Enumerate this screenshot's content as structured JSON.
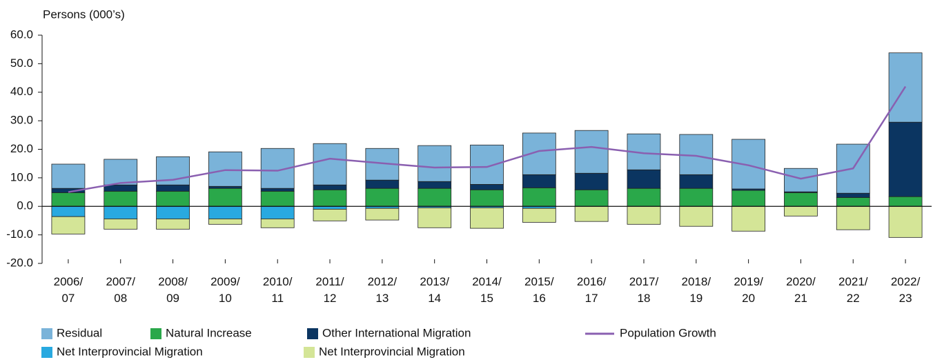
{
  "chart_data": {
    "type": "bar",
    "y_label": "Persons (000’s)",
    "categories": [
      "2006/07",
      "2007/08",
      "2008/09",
      "2009/10",
      "2010/11",
      "2011/12",
      "2012/13",
      "2013/14",
      "2014/15",
      "2015/16",
      "2016/17",
      "2017/18",
      "2018/19",
      "2019/20",
      "2020/21",
      "2021/22",
      "2022/23"
    ],
    "series": [
      {
        "name": "Residual",
        "color": "#7ab3d9",
        "values": [
          8.5,
          9.0,
          9.9,
          12.1,
          14.0,
          14.5,
          11.1,
          12.6,
          13.8,
          14.6,
          15.0,
          12.6,
          14.1,
          17.4,
          8.2,
          17.2,
          24.3
        ]
      },
      {
        "name": "Natural Increase",
        "color": "#2aa84a",
        "values": [
          4.8,
          5.3,
          5.3,
          6.3,
          5.3,
          5.8,
          6.3,
          6.3,
          5.8,
          6.5,
          5.8,
          6.3,
          6.3,
          5.6,
          4.8,
          3.1,
          3.4
        ]
      },
      {
        "name": "Other International Migration",
        "color": "#0b3561",
        "values": [
          1.5,
          2.2,
          2.2,
          0.7,
          1.0,
          1.7,
          2.9,
          2.4,
          1.9,
          4.6,
          5.8,
          6.5,
          4.8,
          0.5,
          0.3,
          1.5,
          26.1
        ]
      },
      {
        "name": "Net Interprovincial Migration",
        "color": "#29a9e0",
        "values": [
          -3.6,
          -4.4,
          -4.4,
          -4.4,
          -4.4,
          -1.0,
          -0.7,
          -0.5,
          -0.5,
          -0.7,
          0,
          0,
          0,
          0,
          0,
          0,
          0
        ]
      },
      {
        "name": "Net Interprovincial Migration",
        "color": "#d4e597",
        "values": [
          -6.1,
          -3.6,
          -3.6,
          -1.9,
          -3.1,
          -4.1,
          -4.1,
          -7.0,
          -7.2,
          -4.9,
          -5.3,
          -6.3,
          -7.0,
          -8.7,
          -3.4,
          -8.2,
          -10.9
        ]
      },
      {
        "name": "Population Growth",
        "color": "#8a5fb0",
        "type": "line",
        "values": [
          5.0,
          8.2,
          9.3,
          12.7,
          12.5,
          16.7,
          15.1,
          13.6,
          13.8,
          19.4,
          20.8,
          18.6,
          17.7,
          14.4,
          9.7,
          13.3,
          42.0
        ]
      }
    ],
    "ylim": [
      -20,
      60
    ],
    "yticks": [
      {
        "value": -20,
        "label": "-20.0"
      },
      {
        "value": -10,
        "label": "-10.0"
      },
      {
        "value": 0,
        "label": "0.0"
      },
      {
        "value": 10,
        "label": "10.0"
      },
      {
        "value": 20,
        "label": "20.0"
      },
      {
        "value": 30,
        "label": "30.0"
      },
      {
        "value": 40,
        "label": "40.0"
      },
      {
        "value": 50,
        "label": "50.0"
      },
      {
        "value": 60,
        "label": "60.0"
      }
    ]
  }
}
